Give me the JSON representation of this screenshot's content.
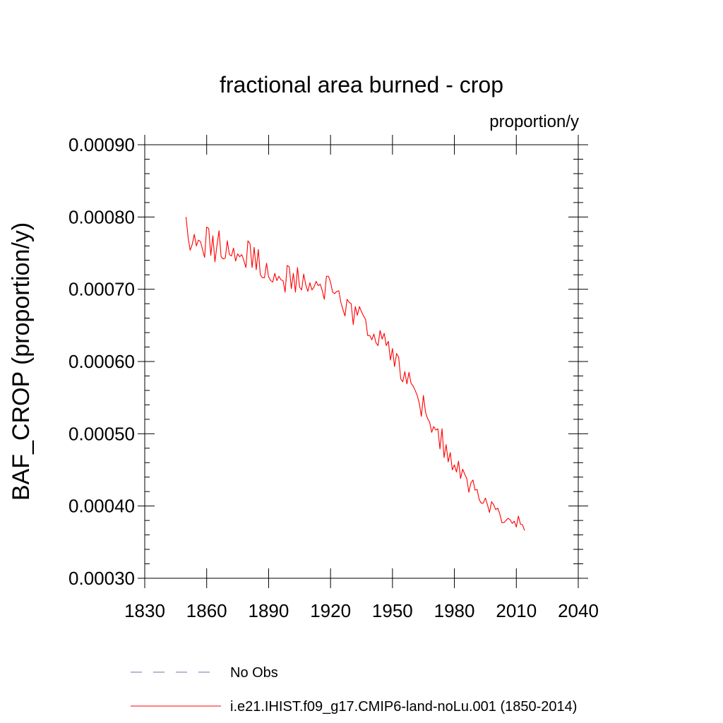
{
  "chart_data": {
    "type": "line",
    "title": "fractional area burned - crop",
    "units_label": "proportion/y",
    "ylabel": "BAF_CROP  (proportion/y)",
    "xlabel": "",
    "xlim": [
      1830,
      2040
    ],
    "ylim": [
      0.0003,
      0.0009
    ],
    "x_ticks": [
      1830,
      1860,
      1890,
      1920,
      1950,
      1980,
      2010,
      2040
    ],
    "y_ticks": [
      0.0003,
      0.0004,
      0.0005,
      0.0006,
      0.0007,
      0.0008,
      0.0009
    ],
    "y_tick_labels": [
      "0.00030",
      "0.00040",
      "0.00050",
      "0.00060",
      "0.00070",
      "0.00080",
      "0.00090"
    ],
    "legend_placement": "bottom",
    "series": [
      {
        "name": "No Obs",
        "color": "#7b6bb0",
        "dashed": true,
        "x": [],
        "values": []
      },
      {
        "name": "i.e21.IHIST.f09_g17.CMIP6-land-noLu.001 (1850-2014)",
        "color": "#ff0000",
        "dashed": false,
        "x": [
          1850,
          1851,
          1852,
          1853,
          1854,
          1855,
          1856,
          1857,
          1858,
          1859,
          1860,
          1861,
          1862,
          1863,
          1864,
          1865,
          1866,
          1867,
          1868,
          1869,
          1870,
          1871,
          1872,
          1873,
          1874,
          1875,
          1876,
          1877,
          1878,
          1879,
          1880,
          1881,
          1882,
          1883,
          1884,
          1885,
          1886,
          1887,
          1888,
          1889,
          1890,
          1891,
          1892,
          1893,
          1894,
          1895,
          1896,
          1897,
          1898,
          1899,
          1900,
          1901,
          1902,
          1903,
          1904,
          1905,
          1906,
          1907,
          1908,
          1909,
          1910,
          1911,
          1912,
          1913,
          1914,
          1915,
          1916,
          1917,
          1918,
          1919,
          1920,
          1921,
          1922,
          1923,
          1924,
          1925,
          1926,
          1927,
          1928,
          1929,
          1930,
          1931,
          1932,
          1933,
          1934,
          1935,
          1936,
          1937,
          1938,
          1939,
          1940,
          1941,
          1942,
          1943,
          1944,
          1945,
          1946,
          1947,
          1948,
          1949,
          1950,
          1951,
          1952,
          1953,
          1954,
          1955,
          1956,
          1957,
          1958,
          1959,
          1960,
          1961,
          1962,
          1963,
          1964,
          1965,
          1966,
          1967,
          1968,
          1969,
          1970,
          1971,
          1972,
          1973,
          1974,
          1975,
          1976,
          1977,
          1978,
          1979,
          1980,
          1981,
          1982,
          1983,
          1984,
          1985,
          1986,
          1987,
          1988,
          1989,
          1990,
          1991,
          1992,
          1993,
          1994,
          1995,
          1996,
          1997,
          1998,
          1999,
          2000,
          2001,
          2002,
          2003,
          2004,
          2005,
          2006,
          2007,
          2008,
          2009,
          2010,
          2011,
          2012,
          2013,
          2014
        ],
        "values": [
          0.0008,
          0.000772,
          0.000754,
          0.000762,
          0.000776,
          0.00076,
          0.000768,
          0.000766,
          0.000755,
          0.000744,
          0.000786,
          0.000784,
          0.000747,
          0.000774,
          0.000738,
          0.000761,
          0.000781,
          0.000745,
          0.000742,
          0.000743,
          0.000767,
          0.000748,
          0.000746,
          0.000757,
          0.000739,
          0.000749,
          0.000745,
          0.000748,
          0.00074,
          0.00073,
          0.000767,
          0.000763,
          0.00073,
          0.000758,
          0.000727,
          0.000755,
          0.00072,
          0.000716,
          0.000716,
          0.000736,
          0.000717,
          0.000712,
          0.00071,
          0.000722,
          0.000712,
          0.000718,
          0.000713,
          0.000712,
          0.000696,
          0.000733,
          0.000731,
          0.000701,
          0.000722,
          0.000696,
          0.00073,
          0.000703,
          0.000699,
          0.000721,
          0.000706,
          0.000697,
          0.000709,
          0.000699,
          0.000703,
          0.000711,
          0.000705,
          0.000707,
          0.000698,
          0.000686,
          0.000718,
          0.000718,
          0.00071,
          0.000696,
          0.000694,
          0.000697,
          0.000698,
          0.000682,
          0.000672,
          0.000663,
          0.000686,
          0.000682,
          0.00068,
          0.000651,
          0.000676,
          0.000664,
          0.000676,
          0.000669,
          0.000663,
          0.000658,
          0.000636,
          0.000636,
          0.00063,
          0.000638,
          0.000626,
          0.000622,
          0.000643,
          0.000631,
          0.000639,
          0.000622,
          0.000628,
          0.000602,
          0.000618,
          0.000593,
          0.000611,
          0.000606,
          0.000576,
          0.000572,
          0.000586,
          0.000569,
          0.000585,
          0.00057,
          0.000566,
          0.00056,
          0.000553,
          0.000542,
          0.000524,
          0.000553,
          0.00053,
          0.000521,
          0.000516,
          0.000502,
          0.00051,
          0.000505,
          0.000507,
          0.000479,
          0.000507,
          0.000467,
          0.000485,
          0.000461,
          0.000474,
          0.00045,
          0.000457,
          0.000447,
          0.000462,
          0.000438,
          0.000451,
          0.000444,
          0.000438,
          0.000419,
          0.000432,
          0.000436,
          0.000422,
          0.000423,
          0.000409,
          0.000404,
          0.000404,
          0.000411,
          0.000402,
          0.000391,
          0.000406,
          0.000402,
          0.000395,
          0.000397,
          0.000389,
          0.000377,
          0.000377,
          0.00038,
          0.000383,
          0.000381,
          0.000376,
          0.000379,
          0.000371,
          0.000386,
          0.000375,
          0.000374,
          0.000366
        ]
      }
    ]
  }
}
